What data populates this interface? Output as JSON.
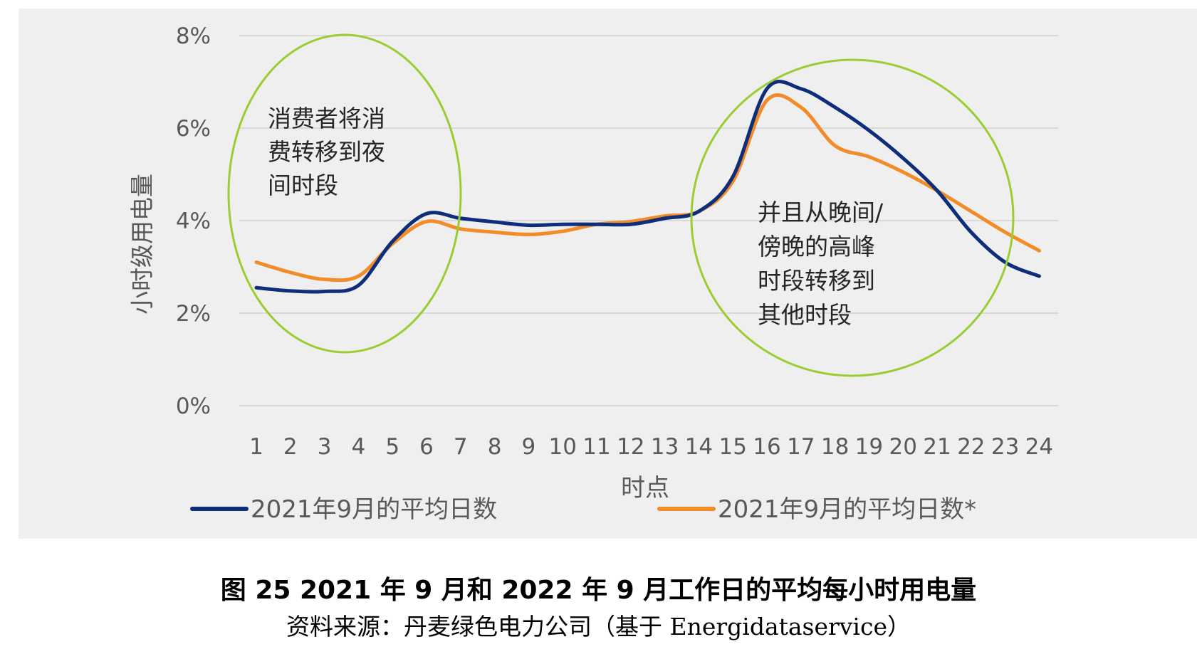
{
  "chart_data": {
    "type": "line",
    "title": "",
    "xlabel": "时点",
    "ylabel": "小时级用电量",
    "x": [
      1,
      2,
      3,
      4,
      5,
      6,
      7,
      8,
      9,
      10,
      11,
      12,
      13,
      14,
      15,
      16,
      17,
      18,
      19,
      20,
      21,
      22,
      23,
      24
    ],
    "yticks": [
      "0%",
      "2%",
      "4%",
      "6%",
      "8%"
    ],
    "ylim": [
      0,
      8
    ],
    "grid": true,
    "legend_position": "bottom",
    "series": [
      {
        "name": "2021年9月的平均日数",
        "color": "#0e2d7a",
        "values": [
          2.55,
          2.48,
          2.47,
          2.6,
          3.55,
          4.15,
          4.05,
          3.97,
          3.9,
          3.92,
          3.92,
          3.92,
          4.05,
          4.2,
          4.95,
          6.85,
          6.85,
          6.45,
          5.95,
          5.35,
          4.65,
          3.75,
          3.1,
          2.8
        ]
      },
      {
        "name": "2021年9月的平均日数*",
        "color": "#f28c28",
        "values": [
          3.1,
          2.88,
          2.73,
          2.8,
          3.5,
          3.98,
          3.82,
          3.75,
          3.7,
          3.77,
          3.92,
          3.98,
          4.1,
          4.2,
          4.85,
          6.6,
          6.45,
          5.62,
          5.38,
          5.05,
          4.65,
          4.2,
          3.75,
          3.35
        ]
      }
    ],
    "annotations": [
      {
        "lines": [
          "消费者将消",
          "费转移到夜",
          "间时段"
        ]
      },
      {
        "lines": [
          "并且从晚间/",
          "傍晚的高峰",
          "时段转移到",
          "其他时段"
        ]
      }
    ]
  },
  "caption": {
    "title": "图 25 2021 年 9 月和 2022 年 9 月工作日的平均每小时用电量",
    "source": "资料来源：丹麦绿色电力公司（基于 Energidataservice）"
  },
  "colors": {
    "plot_background": "#efefef",
    "gridline": "#d9d9d9",
    "highlight_circle": "#9acd32"
  }
}
